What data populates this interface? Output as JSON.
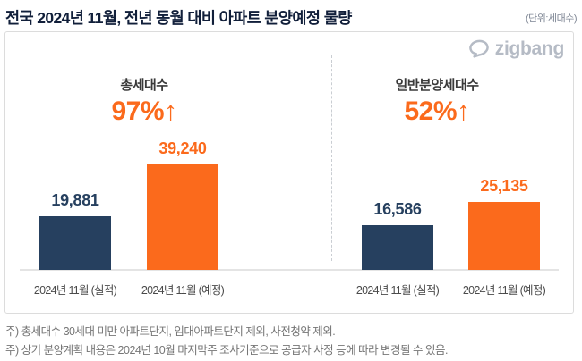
{
  "header": {
    "title": "전국 2024년 11월, 전년 동월 대비 아파트 분양예정 물량",
    "unit_label": "(단위:세대수)"
  },
  "logo": {
    "brand": "zigbang"
  },
  "chart_data": {
    "type": "bar",
    "title": "전국 2024년 11월, 전년 동월 대비 아파트 분양예정 물량",
    "unit": "세대수",
    "grid": false,
    "legend": "none",
    "categories": [
      "2024년 11월 (실적)",
      "2024년 11월 (예정)"
    ],
    "series": [
      {
        "name": "2024년 11월 (실적)",
        "color": "#26405f"
      },
      {
        "name": "2024년 11월 (예정)",
        "color": "#fb6a1c"
      }
    ],
    "groups": [
      {
        "title": "총세대수",
        "change_label": "97%↑",
        "values": [
          19881,
          39240
        ],
        "value_labels": [
          "19,881",
          "39,240"
        ]
      },
      {
        "title": "일반분양세대수",
        "change_label": "52%↑",
        "values": [
          16586,
          25135
        ],
        "value_labels": [
          "16,586",
          "25,135"
        ]
      }
    ]
  },
  "colors": {
    "accent_orange": "#fb6a1c",
    "navy": "#26405f",
    "logo_gray": "#b5bbc5",
    "title_navy": "#111f3a"
  },
  "footnotes": [
    "주) 총세대수 30세대 미만 아파트단지, 임대아파트단지 제외, 사전청약 제외.",
    "주) 상기 분양계획 내용은 2024년 10월 마지막주 조사기준으로 공급자 사정 등에 따라 변경될 수 있음."
  ]
}
